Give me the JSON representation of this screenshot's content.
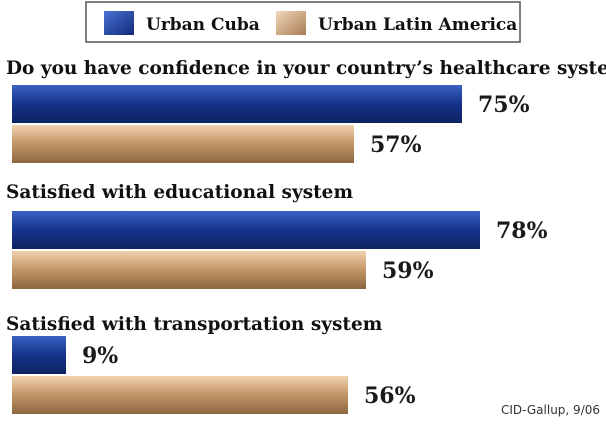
{
  "chart_data": {
    "type": "bar",
    "orientation": "horizontal",
    "legend": {
      "position": "top",
      "items": [
        {
          "label": "Urban Cuba",
          "color": "#1e3f9a"
        },
        {
          "label": "Urban Latin America",
          "color": "#c79a6c"
        }
      ]
    },
    "categories": [
      "Do you have confidence in your country’s healthcare system?",
      "Satisfied with educational system",
      "Satisfied with transportation system"
    ],
    "series": [
      {
        "name": "Urban Cuba",
        "values": [
          75,
          78,
          9
        ],
        "labels": [
          "75%",
          "78%",
          "9%"
        ],
        "color": "#1e3f9a"
      },
      {
        "name": "Urban Latin America",
        "values": [
          57,
          59,
          56
        ],
        "labels": [
          "57%",
          "59%",
          "56%"
        ],
        "color": "#c79a6c"
      }
    ],
    "unit": "%",
    "grid": false,
    "source": "CID-Gallup, 9/06"
  }
}
